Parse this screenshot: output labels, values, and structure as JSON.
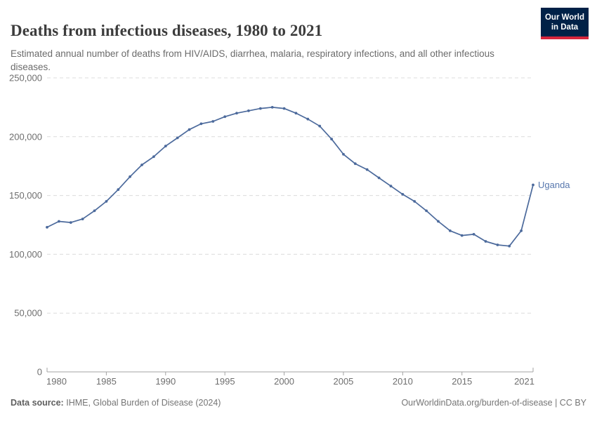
{
  "header": {
    "title": "Deaths from infectious diseases, 1980 to 2021",
    "subtitle": "Estimated annual number of deaths from HIV/AIDS, diarrhea, malaria, respiratory infections, and all other infectious diseases.",
    "logo": {
      "line1": "Our World",
      "line2": "in Data",
      "bg_color": "#002147",
      "bar_color": "#d7263d"
    }
  },
  "chart_data": {
    "type": "line",
    "title": "Deaths from infectious diseases, 1980 to 2021",
    "xlabel": "",
    "ylabel": "",
    "xlim": [
      1980,
      2021
    ],
    "ylim": [
      0,
      250000
    ],
    "grid": "horizontal-dashed",
    "legend_position": "end-of-line",
    "xticks": [
      1980,
      1985,
      1990,
      1995,
      2000,
      2005,
      2010,
      2015,
      2021
    ],
    "xtick_labels": [
      "1980",
      "1985",
      "1990",
      "1995",
      "2000",
      "2005",
      "2010",
      "2015",
      "2021"
    ],
    "yticks": [
      0,
      50000,
      100000,
      150000,
      200000,
      250000
    ],
    "ytick_labels": [
      "0",
      "50,000",
      "100,000",
      "150,000",
      "200,000",
      "250,000"
    ],
    "series": [
      {
        "name": "Uganda",
        "color": "#4C6A9C",
        "label_color": "#5878AE",
        "x": [
          1980,
          1981,
          1982,
          1983,
          1984,
          1985,
          1986,
          1987,
          1988,
          1989,
          1990,
          1991,
          1992,
          1993,
          1994,
          1995,
          1996,
          1997,
          1998,
          1999,
          2000,
          2001,
          2002,
          2003,
          2004,
          2005,
          2006,
          2007,
          2008,
          2009,
          2010,
          2011,
          2012,
          2013,
          2014,
          2015,
          2016,
          2017,
          2018,
          2019,
          2020,
          2021
        ],
        "values": [
          123000,
          128000,
          127000,
          130000,
          137000,
          145000,
          155000,
          166000,
          176000,
          183000,
          192000,
          199000,
          206000,
          211000,
          213000,
          217000,
          220000,
          222000,
          224000,
          225000,
          224000,
          220000,
          215000,
          209000,
          198000,
          185000,
          177000,
          172000,
          165000,
          158000,
          151000,
          145000,
          137000,
          128000,
          120000,
          116000,
          117000,
          111000,
          108000,
          107000,
          120000,
          159000
        ]
      }
    ]
  },
  "footer": {
    "datasource_label": "Data source:",
    "datasource_value": "IHME, Global Burden of Disease (2024)",
    "link_text": "OurWorldinData.org/burden-of-disease | CC BY"
  }
}
